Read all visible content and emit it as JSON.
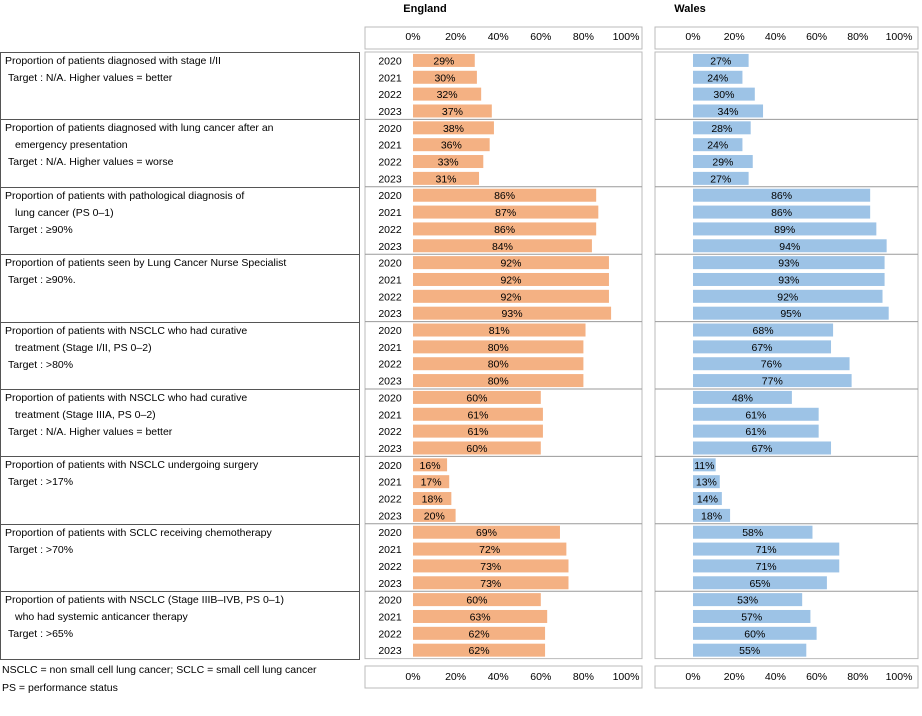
{
  "headers": {
    "england": "England",
    "wales": "Wales"
  },
  "tick_labels": [
    "0%",
    "20%",
    "40%",
    "60%",
    "80%",
    "100%"
  ],
  "colors": {
    "england_bar": "#f4b183",
    "wales_bar": "#9dc3e6",
    "border": "#555555"
  },
  "indicators": [
    {
      "lines": [
        "Proportion of patients diagnosed with stage I/II"
      ],
      "target": "Target : N/A.  Higher values = better"
    },
    {
      "lines": [
        "Proportion of patients diagnosed with lung cancer after an",
        "emergency presentation"
      ],
      "target": "Target : N/A.  Higher values = worse"
    },
    {
      "lines": [
        "Proportion of patients with pathological diagnosis of",
        "lung cancer (PS 0–1)"
      ],
      "target": "Target : ≥90%"
    },
    {
      "lines": [
        "Proportion of patients seen by Lung Cancer Nurse Specialist"
      ],
      "target": "Target : ≥90%."
    },
    {
      "lines": [
        "Proportion of patients with NSCLC who had curative",
        "treatment (Stage I/II, PS 0–2)"
      ],
      "target": "Target : >80%"
    },
    {
      "lines": [
        "Proportion of patients with NSCLC who had curative",
        "treatment (Stage IIIA, PS 0–2)"
      ],
      "target": "Target : N/A.  Higher values = better"
    },
    {
      "lines": [
        "Proportion of patients with NSCLC undergoing surgery"
      ],
      "target": "Target : >17%"
    },
    {
      "lines": [
        "Proportion of patients with SCLC receiving chemotherapy"
      ],
      "target": "Target : >70%"
    },
    {
      "lines": [
        "Proportion of patients with NSCLC (Stage IIIB–IVB, PS 0–1)",
        "who had systemic anticancer therapy"
      ],
      "target": "Target : >65%"
    }
  ],
  "footnotes": [
    "NSCLC = non small cell lung cancer; SCLC = small cell lung cancer",
    "PS = performance status"
  ],
  "chart_data": {
    "type": "bar",
    "orientation": "horizontal",
    "years": [
      "2020",
      "2021",
      "2022",
      "2023"
    ],
    "xlim": [
      0,
      100
    ],
    "unit": "%",
    "series": [
      {
        "name": "England",
        "values": [
          [
            29,
            30,
            32,
            37
          ],
          [
            38,
            36,
            33,
            31
          ],
          [
            86,
            87,
            86,
            84
          ],
          [
            92,
            92,
            92,
            93
          ],
          [
            81,
            80,
            80,
            80
          ],
          [
            60,
            61,
            61,
            60
          ],
          [
            16,
            17,
            18,
            20
          ],
          [
            69,
            72,
            73,
            73
          ],
          [
            60,
            63,
            62,
            62
          ]
        ]
      },
      {
        "name": "Wales",
        "values": [
          [
            27,
            24,
            30,
            34
          ],
          [
            28,
            24,
            29,
            27
          ],
          [
            86,
            86,
            89,
            94
          ],
          [
            93,
            93,
            92,
            95
          ],
          [
            68,
            67,
            76,
            77
          ],
          [
            48,
            61,
            61,
            67
          ],
          [
            11,
            13,
            14,
            18
          ],
          [
            58,
            71,
            71,
            65
          ],
          [
            53,
            57,
            60,
            55
          ]
        ]
      }
    ]
  }
}
